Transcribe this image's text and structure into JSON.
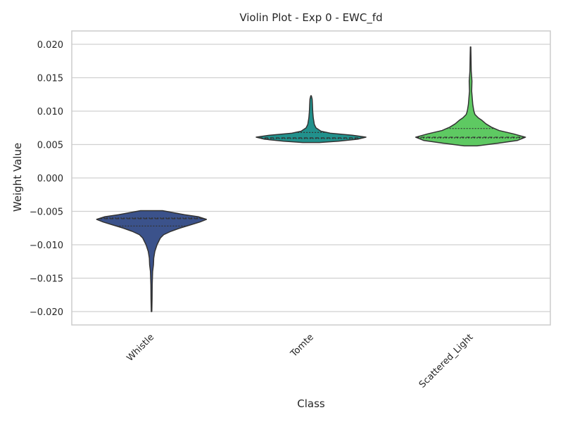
{
  "chart_data": {
    "type": "violin",
    "title": "Violin Plot - Exp 0 - EWC_fd",
    "xlabel": "Class",
    "ylabel": "Weight Value",
    "ylim": [
      -0.022,
      0.022
    ],
    "yticks": [
      -0.02,
      -0.015,
      -0.01,
      -0.005,
      0.0,
      0.005,
      0.01,
      0.015,
      0.02
    ],
    "ytick_labels": [
      "−0.020",
      "−0.015",
      "−0.010",
      "−0.005",
      "0.000",
      "0.005",
      "0.010",
      "0.015",
      "0.020"
    ],
    "grid": true,
    "categories": [
      "Whistle",
      "Tomte",
      "Scattered_Light"
    ],
    "series": [
      {
        "category": "Whistle",
        "color": "#3b528b",
        "min": -0.02,
        "max": -0.0049,
        "q1": -0.0072,
        "median": -0.0061,
        "q3": -0.006,
        "profile": [
          [
            -0.02,
            0.005
          ],
          [
            -0.018,
            0.01
          ],
          [
            -0.016,
            0.012
          ],
          [
            -0.014,
            0.02
          ],
          [
            -0.013,
            0.035
          ],
          [
            -0.012,
            0.04
          ],
          [
            -0.011,
            0.06
          ],
          [
            -0.01,
            0.1
          ],
          [
            -0.009,
            0.16
          ],
          [
            -0.0085,
            0.22
          ],
          [
            -0.008,
            0.35
          ],
          [
            -0.0075,
            0.52
          ],
          [
            -0.007,
            0.72
          ],
          [
            -0.0066,
            0.88
          ],
          [
            -0.0062,
            1.0
          ],
          [
            -0.0058,
            0.85
          ],
          [
            -0.0055,
            0.6
          ],
          [
            -0.0052,
            0.4
          ],
          [
            -0.0049,
            0.2
          ]
        ]
      },
      {
        "category": "Tomte",
        "color": "#21918c",
        "min": 0.0053,
        "max": 0.0123,
        "q1": 0.0059,
        "median": 0.006,
        "q3": 0.0068,
        "profile": [
          [
            0.0053,
            0.15
          ],
          [
            0.0055,
            0.5
          ],
          [
            0.0058,
            0.85
          ],
          [
            0.0061,
            1.0
          ],
          [
            0.0064,
            0.75
          ],
          [
            0.0067,
            0.35
          ],
          [
            0.007,
            0.18
          ],
          [
            0.0075,
            0.09
          ],
          [
            0.008,
            0.06
          ],
          [
            0.0085,
            0.05
          ],
          [
            0.009,
            0.04
          ],
          [
            0.01,
            0.03
          ],
          [
            0.011,
            0.025
          ],
          [
            0.0118,
            0.02
          ],
          [
            0.0123,
            0.005
          ]
        ]
      },
      {
        "category": "Scattered_Light",
        "color": "#5ec962",
        "min": 0.0048,
        "max": 0.0196,
        "q1": 0.006,
        "median": 0.0061,
        "q3": 0.0074,
        "profile": [
          [
            0.0048,
            0.12
          ],
          [
            0.0052,
            0.5
          ],
          [
            0.0056,
            0.85
          ],
          [
            0.0061,
            1.0
          ],
          [
            0.0066,
            0.78
          ],
          [
            0.0071,
            0.52
          ],
          [
            0.0076,
            0.38
          ],
          [
            0.0081,
            0.28
          ],
          [
            0.0086,
            0.21
          ],
          [
            0.009,
            0.14
          ],
          [
            0.0095,
            0.08
          ],
          [
            0.01,
            0.06
          ],
          [
            0.011,
            0.04
          ],
          [
            0.012,
            0.03
          ],
          [
            0.013,
            0.02
          ],
          [
            0.0145,
            0.025
          ],
          [
            0.016,
            0.012
          ],
          [
            0.018,
            0.008
          ],
          [
            0.0196,
            0.004
          ]
        ]
      }
    ]
  }
}
